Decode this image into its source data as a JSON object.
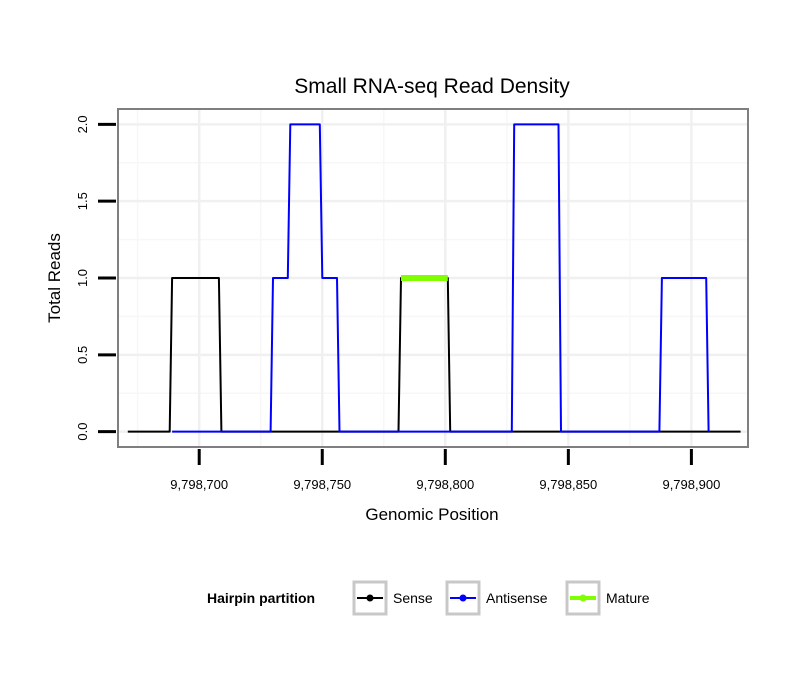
{
  "chart_data": {
    "type": "line",
    "title": "Small RNA-seq Read Density",
    "xlabel": "Genomic Position",
    "ylabel": "Total Reads",
    "xlim": [
      9798667,
      9798923
    ],
    "ylim": [
      -0.1,
      2.1
    ],
    "x_ticks": [
      9798700,
      9798750,
      9798800,
      9798850,
      9798900
    ],
    "x_tick_labels": [
      "9,798,700",
      "9,798,750",
      "9,798,800",
      "9,798,850",
      "9,798,900"
    ],
    "y_ticks": [
      0,
      0.5,
      1,
      1.5,
      2
    ],
    "y_tick_labels": [
      "0.0",
      "0.5",
      "1.0",
      "1.5",
      "2.0"
    ],
    "grid": true,
    "legend": {
      "title": "Hairpin partition",
      "position": "bottom"
    },
    "series": [
      {
        "name": "Sense",
        "color": "#000000",
        "x": [
          9798671,
          9798688,
          9798689,
          9798708,
          9798709,
          9798781,
          9798782,
          9798801,
          9798802,
          9798920
        ],
        "y": [
          0,
          0,
          1,
          1,
          0,
          0,
          1,
          1,
          0,
          0
        ]
      },
      {
        "name": "Antisense",
        "color": "#0000ff",
        "x": [
          9798689,
          9798729,
          9798730,
          9798736,
          9798737,
          9798749,
          9798750,
          9798756,
          9798757,
          9798827,
          9798828,
          9798846,
          9798847,
          9798887,
          9798888,
          9798906,
          9798907
        ],
        "y": [
          0,
          0,
          1,
          1,
          2,
          2,
          1,
          1,
          0,
          0,
          2,
          2,
          0,
          0,
          1,
          1,
          0
        ]
      },
      {
        "name": "Mature",
        "color": "#7fff00",
        "x": [
          9798782,
          9798801
        ],
        "y": [
          1,
          1
        ]
      }
    ]
  }
}
